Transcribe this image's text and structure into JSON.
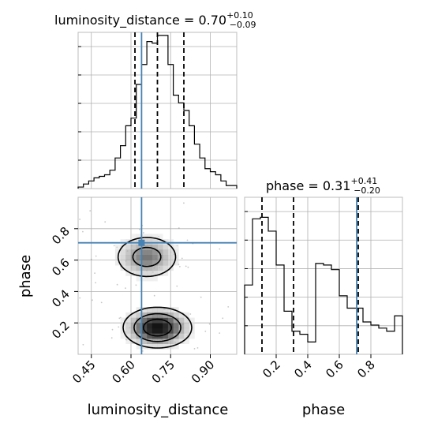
{
  "chart_data": [
    {
      "type": "histogram",
      "panel": "luminosity_distance marginal",
      "title": {
        "param": "luminosity_distance",
        "value": "0.70",
        "plus": "+0.10",
        "minus": "−0.09"
      },
      "xlim": [
        0.4,
        1.0
      ],
      "bin_edges": [
        0.4,
        0.42,
        0.44,
        0.46,
        0.48,
        0.5,
        0.52,
        0.54,
        0.56,
        0.58,
        0.6,
        0.62,
        0.64,
        0.66,
        0.68,
        0.7,
        0.72,
        0.74,
        0.76,
        0.78,
        0.8,
        0.82,
        0.84,
        0.86,
        0.88,
        0.9,
        0.92,
        0.94,
        0.96,
        0.98,
        1.0
      ],
      "values": [
        0.01,
        0.03,
        0.05,
        0.07,
        0.08,
        0.09,
        0.12,
        0.2,
        0.28,
        0.41,
        0.46,
        0.68,
        0.81,
        0.96,
        0.95,
        1.0,
        1.0,
        0.81,
        0.61,
        0.56,
        0.51,
        0.41,
        0.29,
        0.2,
        0.13,
        0.11,
        0.09,
        0.05,
        0.02,
        0.02
      ],
      "quantile_lines": [
        0.615,
        0.7,
        0.8
      ],
      "truth": 0.64,
      "xticks": [
        0.45,
        0.6,
        0.75,
        0.9
      ],
      "xticklabels": [
        "0.45",
        "0.60",
        "0.75",
        "0.90"
      ],
      "xlabel": "luminosity_distance"
    },
    {
      "type": "heatmap",
      "panel": "2D posterior luminosity_distance vs phase",
      "x_param": "luminosity_distance",
      "y_param": "phase",
      "xlim": [
        0.4,
        1.0
      ],
      "ylim": [
        0.0,
        1.0
      ],
      "truth": {
        "x": 0.64,
        "y": 0.71
      },
      "yticks": [
        0.2,
        0.4,
        0.6,
        0.8
      ],
      "yticklabels": [
        "0.2",
        "0.4",
        "0.6",
        "0.8"
      ],
      "ylabel": "phase",
      "modes": [
        {
          "x": 0.7,
          "y": 0.17,
          "sx": 0.07,
          "sy": 0.07,
          "w": 1.0
        },
        {
          "x": 0.66,
          "y": 0.62,
          "sx": 0.07,
          "sy": 0.08,
          "w": 0.6
        }
      ],
      "contour_levels": [
        0.18,
        0.45,
        0.75
      ]
    },
    {
      "type": "histogram",
      "panel": "phase marginal",
      "title": {
        "param": "phase",
        "value": "0.31",
        "plus": "+0.41",
        "minus": "−0.20"
      },
      "xlim": [
        0.0,
        1.0
      ],
      "bin_edges": [
        0.0,
        0.05,
        0.1,
        0.15,
        0.2,
        0.25,
        0.3,
        0.35,
        0.4,
        0.45,
        0.5,
        0.55,
        0.6,
        0.65,
        0.7,
        0.75,
        0.8,
        0.85,
        0.9,
        0.95,
        1.0
      ],
      "values": [
        0.45,
        0.88,
        0.89,
        0.8,
        0.58,
        0.28,
        0.15,
        0.13,
        0.08,
        0.59,
        0.58,
        0.55,
        0.38,
        0.3,
        0.3,
        0.21,
        0.19,
        0.17,
        0.15,
        0.25
      ],
      "quantile_lines": [
        0.11,
        0.31,
        0.72
      ],
      "truth": 0.71,
      "xticks": [
        0.2,
        0.4,
        0.6,
        0.8
      ],
      "xticklabels": [
        "0.2",
        "0.4",
        "0.6",
        "0.8"
      ],
      "xlabel": "phase"
    }
  ],
  "colors": {
    "truth": "#4682b4",
    "hist": "#000000",
    "grid": "#b0b0b0",
    "frame": "#bdbdbd"
  }
}
